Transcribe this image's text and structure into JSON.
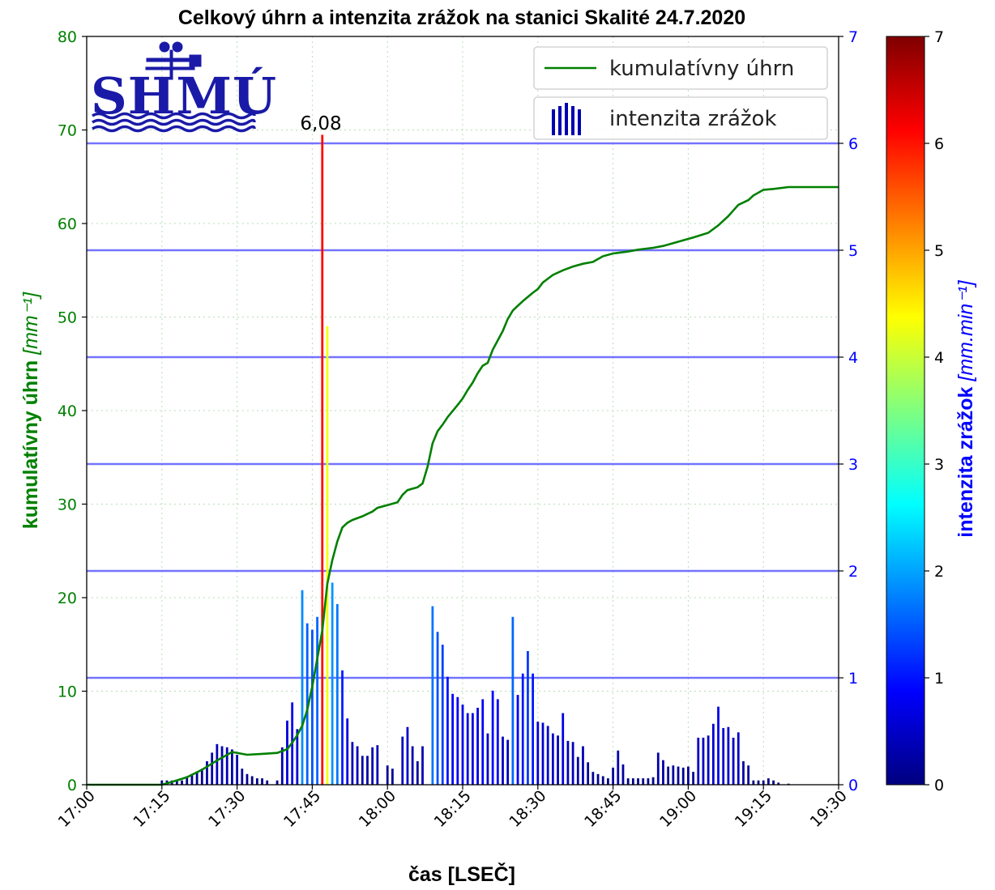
{
  "chart_data": {
    "type": "bar",
    "title": "Celkový úhrn a intenzita zrážok na stanici Skalité 24.7.2020",
    "xlabel": "čas [LSEČ]",
    "ylabel_left": "kumulatívny úhrn",
    "ylabel_left_unit": "[mm⁻¹]",
    "ylabel_right": "intenzita zrážok",
    "ylabel_right_unit": "[mm.min⁻¹]",
    "x_ticks": [
      "17:00",
      "17:15",
      "17:30",
      "17:45",
      "18:00",
      "18:15",
      "18:30",
      "18:45",
      "19:00",
      "19:15",
      "19:30"
    ],
    "xlim_minutes_after_1700": [
      0,
      150
    ],
    "ylim_left": [
      0,
      80
    ],
    "yticks_left": [
      0,
      10,
      20,
      30,
      40,
      50,
      60,
      70,
      80
    ],
    "ylim_right": [
      0,
      7
    ],
    "yticks_right": [
      0,
      1,
      2,
      3,
      4,
      5,
      6,
      7
    ],
    "colorbar_range": [
      0,
      7
    ],
    "colorbar_ticks": [
      0,
      1,
      2,
      3,
      4,
      5,
      6,
      7
    ],
    "colormap": "jet",
    "horizontal_lines_right_axis": [
      1,
      2,
      3,
      4,
      5,
      6
    ],
    "grid": "dotted",
    "legend_position": "top-right",
    "series": [
      {
        "name": "kumulatívny úhrn",
        "type": "line",
        "axis": "left",
        "color": "#008000",
        "points": [
          [
            0,
            0
          ],
          [
            15,
            0
          ],
          [
            17,
            0.3
          ],
          [
            20,
            0.8
          ],
          [
            23,
            1.6
          ],
          [
            26,
            2.6
          ],
          [
            29,
            3.5
          ],
          [
            32,
            3.2
          ],
          [
            35,
            3.3
          ],
          [
            38,
            3.4
          ],
          [
            40,
            3.8
          ],
          [
            41,
            4.5
          ],
          [
            42,
            5.3
          ],
          [
            43,
            6.3
          ],
          [
            44,
            8.0
          ],
          [
            45,
            10.5
          ],
          [
            46,
            13.5
          ],
          [
            47,
            16.5
          ],
          [
            48,
            21.5
          ],
          [
            49,
            24.0
          ],
          [
            50,
            26.0
          ],
          [
            51,
            27.5
          ],
          [
            52,
            28.0
          ],
          [
            53,
            28.3
          ],
          [
            55,
            28.7
          ],
          [
            57,
            29.2
          ],
          [
            58,
            29.6
          ],
          [
            60,
            29.9
          ],
          [
            62,
            30.2
          ],
          [
            63,
            31.0
          ],
          [
            64,
            31.5
          ],
          [
            66,
            31.8
          ],
          [
            67,
            32.2
          ],
          [
            68,
            34.0
          ],
          [
            69,
            36.5
          ],
          [
            70,
            37.8
          ],
          [
            71,
            38.5
          ],
          [
            72,
            39.3
          ],
          [
            74,
            40.6
          ],
          [
            75,
            41.3
          ],
          [
            76,
            42.2
          ],
          [
            77,
            43.0
          ],
          [
            78,
            44.0
          ],
          [
            79,
            44.8
          ],
          [
            80,
            45.1
          ],
          [
            81,
            46.5
          ],
          [
            82,
            47.5
          ],
          [
            83,
            48.5
          ],
          [
            84,
            49.8
          ],
          [
            85,
            50.7
          ],
          [
            87,
            51.7
          ],
          [
            89,
            52.6
          ],
          [
            90,
            53.0
          ],
          [
            91,
            53.7
          ],
          [
            92,
            54.1
          ],
          [
            93,
            54.5
          ],
          [
            95,
            55.0
          ],
          [
            97,
            55.4
          ],
          [
            99,
            55.7
          ],
          [
            101,
            55.9
          ],
          [
            102,
            56.2
          ],
          [
            103,
            56.5
          ],
          [
            105,
            56.8
          ],
          [
            108,
            57.0
          ],
          [
            110,
            57.2
          ],
          [
            113,
            57.4
          ],
          [
            115,
            57.6
          ],
          [
            117,
            57.9
          ],
          [
            119,
            58.2
          ],
          [
            121,
            58.5
          ],
          [
            124,
            59.0
          ],
          [
            126,
            59.8
          ],
          [
            128,
            60.8
          ],
          [
            129,
            61.4
          ],
          [
            130,
            62.0
          ],
          [
            132,
            62.5
          ],
          [
            133,
            63.0
          ],
          [
            135,
            63.6
          ],
          [
            137,
            63.7
          ],
          [
            140,
            63.9
          ],
          [
            143,
            63.9
          ],
          [
            150,
            63.9
          ]
        ]
      },
      {
        "name": "intenzita zrážok",
        "type": "bar",
        "axis": "right",
        "colorscale": "jet",
        "values": [
          [
            15,
            0.04
          ],
          [
            16,
            0.04
          ],
          [
            17,
            0.04
          ],
          [
            18,
            0.04
          ],
          [
            19,
            0.04
          ],
          [
            20,
            0.08
          ],
          [
            21,
            0.1
          ],
          [
            22,
            0.12
          ],
          [
            23,
            0.15
          ],
          [
            24,
            0.22
          ],
          [
            25,
            0.3
          ],
          [
            26,
            0.38
          ],
          [
            27,
            0.36
          ],
          [
            28,
            0.35
          ],
          [
            29,
            0.33
          ],
          [
            30,
            0.28
          ],
          [
            31,
            0.15
          ],
          [
            32,
            0.1
          ],
          [
            33,
            0.08
          ],
          [
            34,
            0.06
          ],
          [
            35,
            0.06
          ],
          [
            36,
            0.04
          ],
          [
            38,
            0.04
          ],
          [
            39,
            0.35
          ],
          [
            40,
            0.6
          ],
          [
            41,
            0.77
          ],
          [
            42,
            0.52
          ],
          [
            43,
            1.82
          ],
          [
            44,
            1.51
          ],
          [
            45,
            1.45
          ],
          [
            46,
            1.57
          ],
          [
            47,
            6.08
          ],
          [
            48,
            4.29
          ],
          [
            49,
            1.89
          ],
          [
            50,
            1.69
          ],
          [
            51,
            1.07
          ],
          [
            52,
            0.62
          ],
          [
            53,
            0.4
          ],
          [
            54,
            0.36
          ],
          [
            55,
            0.27
          ],
          [
            56,
            0.27
          ],
          [
            57,
            0.35
          ],
          [
            58,
            0.37
          ],
          [
            60,
            0.18
          ],
          [
            61,
            0.15
          ],
          [
            63,
            0.45
          ],
          [
            64,
            0.54
          ],
          [
            65,
            0.36
          ],
          [
            66,
            0.22
          ],
          [
            67,
            0.36
          ],
          [
            69,
            1.67
          ],
          [
            70,
            1.43
          ],
          [
            71,
            1.31
          ],
          [
            72,
            1.01
          ],
          [
            73,
            0.85
          ],
          [
            74,
            0.82
          ],
          [
            75,
            0.75
          ],
          [
            76,
            0.67
          ],
          [
            77,
            0.67
          ],
          [
            78,
            0.72
          ],
          [
            79,
            0.8
          ],
          [
            80,
            0.48
          ],
          [
            81,
            0.88
          ],
          [
            82,
            0.8
          ],
          [
            83,
            0.45
          ],
          [
            84,
            0.42
          ],
          [
            85,
            1.57
          ],
          [
            86,
            0.84
          ],
          [
            87,
            1.04
          ],
          [
            88,
            1.25
          ],
          [
            89,
            1.04
          ],
          [
            90,
            0.59
          ],
          [
            91,
            0.58
          ],
          [
            92,
            0.55
          ],
          [
            93,
            0.48
          ],
          [
            94,
            0.46
          ],
          [
            95,
            0.67
          ],
          [
            96,
            0.41
          ],
          [
            97,
            0.4
          ],
          [
            98,
            0.26
          ],
          [
            99,
            0.36
          ],
          [
            100,
            0.21
          ],
          [
            101,
            0.12
          ],
          [
            102,
            0.1
          ],
          [
            103,
            0.08
          ],
          [
            104,
            0.06
          ],
          [
            105,
            0.16
          ],
          [
            106,
            0.32
          ],
          [
            107,
            0.19
          ],
          [
            108,
            0.06
          ],
          [
            109,
            0.06
          ],
          [
            110,
            0.06
          ],
          [
            111,
            0.06
          ],
          [
            112,
            0.06
          ],
          [
            113,
            0.07
          ],
          [
            114,
            0.3
          ],
          [
            115,
            0.23
          ],
          [
            116,
            0.17
          ],
          [
            117,
            0.18
          ],
          [
            118,
            0.17
          ],
          [
            119,
            0.16
          ],
          [
            120,
            0.17
          ],
          [
            121,
            0.12
          ],
          [
            122,
            0.44
          ],
          [
            123,
            0.44
          ],
          [
            124,
            0.46
          ],
          [
            125,
            0.57
          ],
          [
            126,
            0.73
          ],
          [
            127,
            0.53
          ],
          [
            128,
            0.54
          ],
          [
            129,
            0.44
          ],
          [
            130,
            0.49
          ],
          [
            131,
            0.22
          ],
          [
            132,
            0.18
          ],
          [
            133,
            0.04
          ],
          [
            134,
            0.04
          ],
          [
            135,
            0.04
          ],
          [
            136,
            0.06
          ],
          [
            137,
            0.04
          ],
          [
            138,
            0.02
          ],
          [
            140,
            0.01
          ]
        ]
      }
    ],
    "annotations": [
      {
        "text": "6,08",
        "x": 47,
        "y_right": 6.08
      }
    ]
  },
  "logo": {
    "text": "SHMÚ"
  }
}
